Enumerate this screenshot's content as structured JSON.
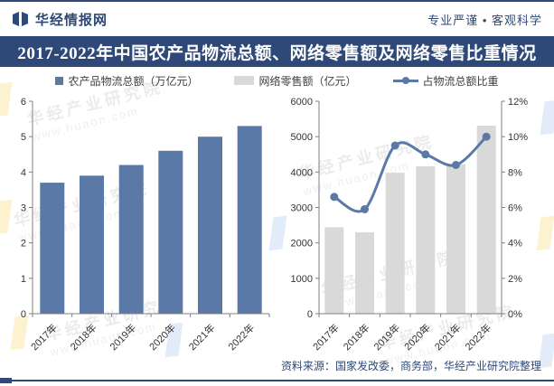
{
  "header": {
    "brand": "华经情报网",
    "slogan": "专业严谨 • 客观科学"
  },
  "title": "2017-2022年中国农产品物流总额、网络零售额及网络零售比重情况",
  "legend": {
    "items": [
      {
        "label": "农产品物流总额（万亿元）",
        "swatch": "square",
        "color": "#5B79A6"
      },
      {
        "label": "网络零售额（亿元）",
        "swatch": "bar",
        "color": "#D9D9D9"
      },
      {
        "label": "占物流总额比重",
        "swatch": "line",
        "color": "#5B79A6"
      }
    ]
  },
  "source_note": "资料来源：国家发改委，商务部，华经产业研究院整理",
  "watermark": {
    "brand_cn": "华经产业研究院",
    "brand_url": "www.huaon.com"
  },
  "colors": {
    "navy": "#2E4977",
    "bar_blue": "#5B79A6",
    "bar_gray": "#D9D9D9",
    "axis": "#808080",
    "tick_text": "#333333"
  },
  "chart_data": [
    {
      "type": "bar",
      "title": "农产品物流总额（万亿元）",
      "categories": [
        "2017年",
        "2018年",
        "2019年",
        "2020年",
        "2021年",
        "2022年"
      ],
      "values": [
        3.7,
        3.9,
        4.2,
        4.6,
        5.0,
        5.3
      ],
      "xlabel": "",
      "ylabel": "",
      "ylim": [
        0,
        6
      ],
      "ytick_step": 1,
      "bar_color": "#5B79A6",
      "grid": false,
      "legend_position": "top"
    },
    {
      "type": "bar+line",
      "categories": [
        "2017年",
        "2018年",
        "2019年",
        "2020年",
        "2021年",
        "2022年"
      ],
      "series": [
        {
          "name": "网络零售额（亿元）",
          "type": "bar",
          "axis": "left",
          "color": "#D9D9D9",
          "values": [
            2440,
            2300,
            3980,
            4160,
            4220,
            5310
          ]
        },
        {
          "name": "占物流总额比重",
          "type": "line",
          "axis": "right",
          "color": "#5B79A6",
          "marker": "circle",
          "values": [
            6.6,
            5.9,
            9.5,
            9.0,
            8.4,
            10.0
          ]
        }
      ],
      "left_axis": {
        "lim": [
          0,
          6000
        ],
        "step": 1000,
        "suffix": ""
      },
      "right_axis": {
        "lim": [
          0,
          12
        ],
        "step": 2,
        "suffix": "%"
      },
      "grid": false,
      "legend_position": "top"
    }
  ]
}
